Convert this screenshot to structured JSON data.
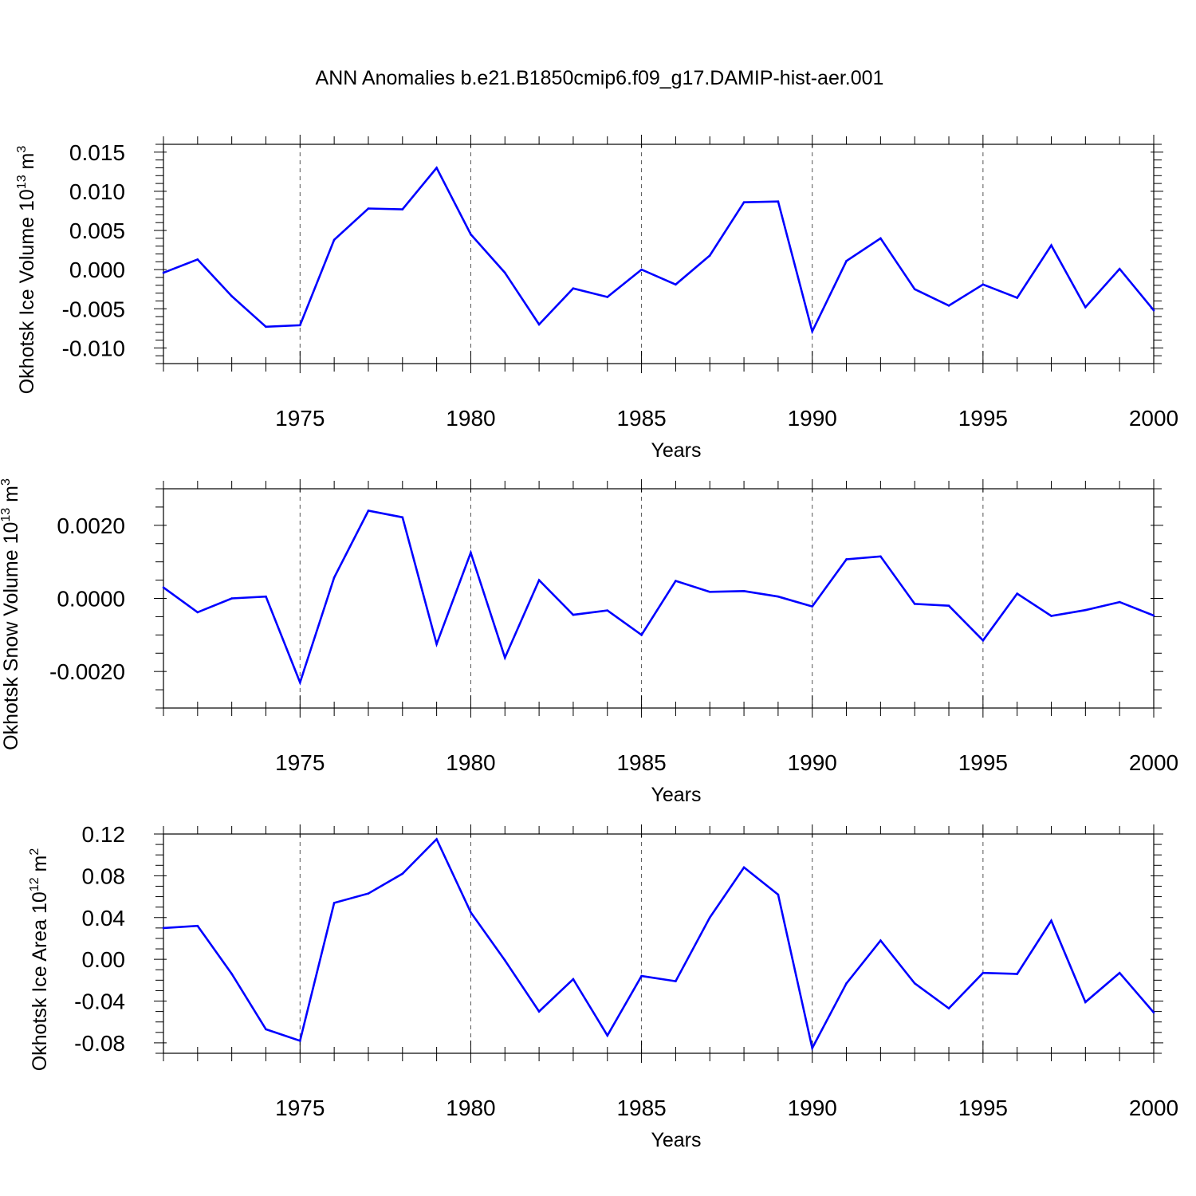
{
  "title": "ANN Anomalies b.e21.B1850cmip6.f09_g17.DAMIP-hist-aer.001",
  "colors": {
    "line": "#0000ff",
    "axis": "#000000",
    "grid": "#555555"
  },
  "chart_data": [
    {
      "type": "line",
      "ylabel_main": "Okhotsk Ice Volume 10",
      "ylabel_exp": "13",
      "ylabel_unit": " m",
      "ylabel_unit_exp": "3",
      "xlabel": "Years",
      "xlim": [
        1971,
        2000
      ],
      "ylim": [
        -0.012,
        0.016
      ],
      "yticks": [
        -0.01,
        -0.005,
        0.0,
        0.005,
        0.01,
        0.015
      ],
      "ytick_labels": [
        "-0.010",
        "-0.005",
        "0.000",
        "0.005",
        "0.010",
        "0.015"
      ],
      "ymin_step": 0.001,
      "xticks": [
        1975,
        1980,
        1985,
        1990,
        1995,
        2000
      ],
      "xtick_labels": [
        "1975",
        "1980",
        "1985",
        "1990",
        "1995",
        "2000"
      ],
      "grid_x": true,
      "x": [
        1971,
        1972,
        1973,
        1974,
        1975,
        1976,
        1977,
        1978,
        1979,
        1980,
        1981,
        1982,
        1983,
        1984,
        1985,
        1986,
        1987,
        1988,
        1989,
        1990,
        1991,
        1992,
        1993,
        1994,
        1995,
        1996,
        1997,
        1998,
        1999,
        2000
      ],
      "values": [
        -0.0004,
        0.0013,
        -0.0034,
        -0.0073,
        -0.0071,
        0.0038,
        0.0078,
        0.0077,
        0.013,
        0.0045,
        -0.0004,
        -0.007,
        -0.0024,
        -0.0035,
        0.0,
        -0.0019,
        0.0018,
        0.0086,
        0.0087,
        -0.0079,
        0.0011,
        0.004,
        -0.0025,
        -0.0046,
        -0.0019,
        -0.0036,
        0.0031,
        -0.0048,
        0.0001,
        -0.0052
      ]
    },
    {
      "type": "line",
      "ylabel_main": "Okhotsk Snow Volume 10",
      "ylabel_exp": "13",
      "ylabel_unit": " m",
      "ylabel_unit_exp": "3",
      "xlabel": "Years",
      "xlim": [
        1971,
        2000
      ],
      "ylim": [
        -0.003,
        0.003
      ],
      "yticks": [
        -0.002,
        0.0,
        0.002
      ],
      "ytick_labels": [
        "-0.0020",
        "0.0000",
        "0.0020"
      ],
      "ymin_step": 0.0005,
      "xticks": [
        1975,
        1980,
        1985,
        1990,
        1995,
        2000
      ],
      "xtick_labels": [
        "1975",
        "1980",
        "1985",
        "1990",
        "1995",
        "2000"
      ],
      "grid_x": true,
      "x": [
        1971,
        1972,
        1973,
        1974,
        1975,
        1976,
        1977,
        1978,
        1979,
        1980,
        1981,
        1982,
        1983,
        1984,
        1985,
        1986,
        1987,
        1988,
        1989,
        1990,
        1991,
        1992,
        1993,
        1994,
        1995,
        1996,
        1997,
        1998,
        1999,
        2000
      ],
      "values": [
        0.0003,
        -0.00038,
        0.0,
        5e-05,
        -0.0023,
        0.00057,
        0.0024,
        0.00222,
        -0.00125,
        0.00125,
        -0.00162,
        0.0005,
        -0.00045,
        -0.00033,
        -0.001,
        0.00048,
        0.00018,
        0.0002,
        5e-05,
        -0.00022,
        0.00107,
        0.00115,
        -0.00015,
        -0.0002,
        -0.00115,
        0.00013,
        -0.00048,
        -0.00032,
        -0.0001,
        -0.00047
      ]
    },
    {
      "type": "line",
      "ylabel_main": "Okhotsk Ice Area 10",
      "ylabel_exp": "12",
      "ylabel_unit": " m",
      "ylabel_unit_exp": "2",
      "xlabel": "Years",
      "xlim": [
        1971,
        2000
      ],
      "ylim": [
        -0.09,
        0.12
      ],
      "yticks": [
        -0.08,
        -0.04,
        0.0,
        0.04,
        0.08,
        0.12
      ],
      "ytick_labels": [
        "-0.08",
        "-0.04",
        "0.00",
        "0.04",
        "0.08",
        "0.12"
      ],
      "ymin_step": 0.01,
      "xticks": [
        1975,
        1980,
        1985,
        1990,
        1995,
        2000
      ],
      "xtick_labels": [
        "1975",
        "1980",
        "1985",
        "1990",
        "1995",
        "2000"
      ],
      "grid_x": true,
      "x": [
        1971,
        1972,
        1973,
        1974,
        1975,
        1976,
        1977,
        1978,
        1979,
        1980,
        1981,
        1982,
        1983,
        1984,
        1985,
        1986,
        1987,
        1988,
        1989,
        1990,
        1991,
        1992,
        1993,
        1994,
        1995,
        1996,
        1997,
        1998,
        1999,
        2000
      ],
      "values": [
        0.03,
        0.032,
        -0.014,
        -0.067,
        -0.078,
        0.054,
        0.063,
        0.082,
        0.115,
        0.045,
        -0.001,
        -0.05,
        -0.019,
        -0.073,
        -0.016,
        -0.021,
        0.04,
        0.088,
        0.062,
        -0.085,
        -0.023,
        0.018,
        -0.023,
        -0.047,
        -0.013,
        -0.014,
        0.037,
        -0.041,
        -0.013,
        -0.051
      ]
    }
  ]
}
